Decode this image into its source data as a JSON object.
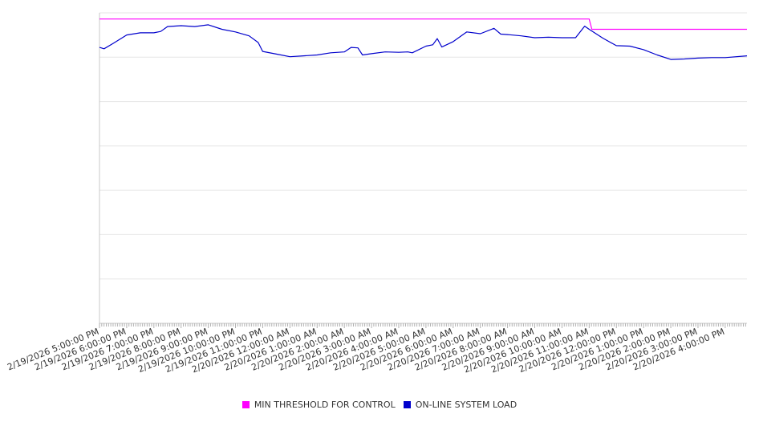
{
  "chart_data": {
    "type": "line",
    "title": "",
    "xlabel": "",
    "ylabel": "",
    "grid": true,
    "legend_position": "bottom",
    "x_start": "2/19/2026 5:00:00 PM",
    "x_end": "2/20/2026 4:48:00 PM",
    "ylim": [
      0,
      7
    ],
    "tick_labels": [
      "2/19/2026 5:00:00 PM",
      "2/19/2026 6:00:00 PM",
      "2/19/2026 7:00:00 PM",
      "2/19/2026 8:00:00 PM",
      "2/19/2026 9:00:00 PM",
      "2/19/2026 10:00:00 PM",
      "2/19/2026 11:00:00 PM",
      "2/20/2026 12:00:00 AM",
      "2/20/2026 1:00:00 AM",
      "2/20/2026 2:00:00 AM",
      "2/20/2026 3:00:00 AM",
      "2/20/2026 4:00:00 AM",
      "2/20/2026 5:00:00 AM",
      "2/20/2026 6:00:00 AM",
      "2/20/2026 7:00:00 AM",
      "2/20/2026 8:00:00 AM",
      "2/20/2026 9:00:00 AM",
      "2/20/2026 10:00:00 AM",
      "2/20/2026 11:00:00 AM",
      "2/20/2026 12:00:00 PM",
      "2/20/2026 1:00:00 PM",
      "2/20/2026 2:00:00 PM",
      "2/20/2026 3:00:00 PM",
      "2/20/2026 4:00:00 PM"
    ],
    "series": [
      {
        "name": "MIN THRESHOLD FOR CONTROL",
        "color": "#ff00ff",
        "points": [
          [
            "2/19/2026 5:00:00 PM",
            6.86
          ],
          [
            "2/20/2026 11:00:00 AM",
            6.86
          ],
          [
            "2/20/2026 11:06:00 AM",
            6.63
          ],
          [
            "2/20/2026 4:48:00 PM",
            6.63
          ]
        ]
      },
      {
        "name": "ON-LINE SYSTEM LOAD",
        "color": "#0000cc",
        "points": [
          [
            "2/19/2026 5:00:00 PM",
            6.22
          ],
          [
            "2/19/2026 5:10:00 PM",
            6.19
          ],
          [
            "2/19/2026 5:30:00 PM",
            6.31
          ],
          [
            "2/19/2026 6:00:00 PM",
            6.5
          ],
          [
            "2/19/2026 6:30:00 PM",
            6.55
          ],
          [
            "2/19/2026 7:00:00 PM",
            6.55
          ],
          [
            "2/19/2026 7:15:00 PM",
            6.58
          ],
          [
            "2/19/2026 7:30:00 PM",
            6.69
          ],
          [
            "2/19/2026 8:00:00 PM",
            6.71
          ],
          [
            "2/19/2026 8:30:00 PM",
            6.69
          ],
          [
            "2/19/2026 9:00:00 PM",
            6.73
          ],
          [
            "2/19/2026 9:30:00 PM",
            6.63
          ],
          [
            "2/19/2026 10:00:00 PM",
            6.57
          ],
          [
            "2/19/2026 10:30:00 PM",
            6.48
          ],
          [
            "2/19/2026 10:50:00 PM",
            6.33
          ],
          [
            "2/19/2026 11:00:00 PM",
            6.13
          ],
          [
            "2/19/2026 11:30:00 PM",
            6.07
          ],
          [
            "2/20/2026 12:00:00 AM",
            6.01
          ],
          [
            "2/20/2026 12:30:00 AM",
            6.03
          ],
          [
            "2/20/2026 1:00:00 AM",
            6.05
          ],
          [
            "2/20/2026 1:30:00 AM",
            6.1
          ],
          [
            "2/20/2026 2:00:00 AM",
            6.12
          ],
          [
            "2/20/2026 2:15:00 AM",
            6.22
          ],
          [
            "2/20/2026 2:30:00 AM",
            6.21
          ],
          [
            "2/20/2026 2:40:00 AM",
            6.05
          ],
          [
            "2/20/2026 3:00:00 AM",
            6.08
          ],
          [
            "2/20/2026 3:30:00 AM",
            6.12
          ],
          [
            "2/20/2026 4:00:00 AM",
            6.11
          ],
          [
            "2/20/2026 4:20:00 AM",
            6.12
          ],
          [
            "2/20/2026 4:30:00 AM",
            6.1
          ],
          [
            "2/20/2026 5:00:00 AM",
            6.25
          ],
          [
            "2/20/2026 5:15:00 AM",
            6.28
          ],
          [
            "2/20/2026 5:25:00 AM",
            6.42
          ],
          [
            "2/20/2026 5:35:00 AM",
            6.23
          ],
          [
            "2/20/2026 6:00:00 AM",
            6.35
          ],
          [
            "2/20/2026 6:30:00 AM",
            6.57
          ],
          [
            "2/20/2026 7:00:00 AM",
            6.53
          ],
          [
            "2/20/2026 7:30:00 AM",
            6.65
          ],
          [
            "2/20/2026 7:45:00 AM",
            6.52
          ],
          [
            "2/20/2026 8:00:00 AM",
            6.51
          ],
          [
            "2/20/2026 8:30:00 AM",
            6.48
          ],
          [
            "2/20/2026 9:00:00 AM",
            6.44
          ],
          [
            "2/20/2026 9:30:00 AM",
            6.45
          ],
          [
            "2/20/2026 10:00:00 AM",
            6.44
          ],
          [
            "2/20/2026 10:30:00 AM",
            6.44
          ],
          [
            "2/20/2026 10:50:00 AM",
            6.7
          ],
          [
            "2/20/2026 11:00:00 AM",
            6.63
          ],
          [
            "2/20/2026 11:30:00 AM",
            6.43
          ],
          [
            "2/20/2026 12:00:00 PM",
            6.26
          ],
          [
            "2/20/2026 12:30:00 PM",
            6.25
          ],
          [
            "2/20/2026 1:00:00 PM",
            6.17
          ],
          [
            "2/20/2026 1:30:00 PM",
            6.05
          ],
          [
            "2/20/2026 2:00:00 PM",
            5.95
          ],
          [
            "2/20/2026 2:30:00 PM",
            5.96
          ],
          [
            "2/20/2026 3:00:00 PM",
            5.98
          ],
          [
            "2/20/2026 3:30:00 PM",
            5.99
          ],
          [
            "2/20/2026 4:00:00 PM",
            5.99
          ],
          [
            "2/20/2026 4:48:00 PM",
            6.03
          ]
        ]
      }
    ]
  },
  "legend": {
    "threshold_label": "MIN THRESHOLD FOR CONTROL",
    "threshold_color": "#ff00ff",
    "load_label": "ON-LINE SYSTEM LOAD",
    "load_color": "#0000cc"
  }
}
